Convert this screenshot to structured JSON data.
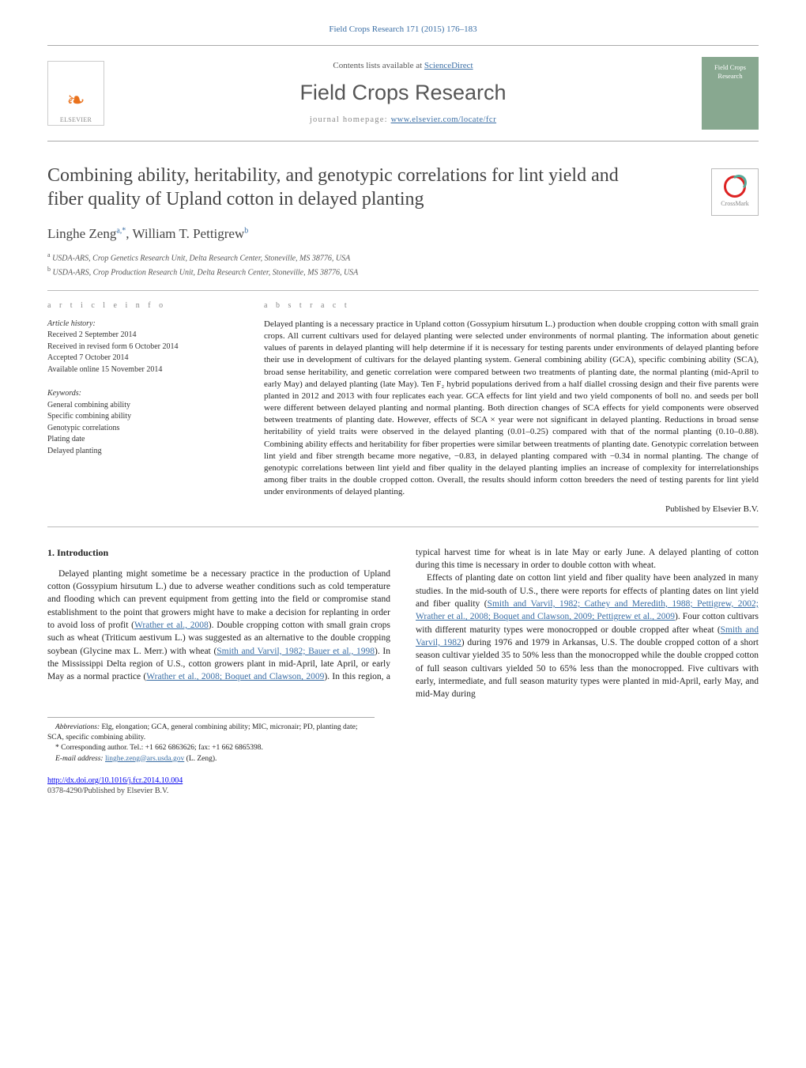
{
  "header": {
    "citation": "Field Crops Research 171 (2015) 176–183",
    "avail_text": "Contents lists available at ",
    "avail_link": "ScienceDirect",
    "journal": "Field Crops Research",
    "homepage_label": "journal homepage: ",
    "homepage_link": "www.elsevier.com/locate/fcr",
    "publisher": "ELSEVIER",
    "cover_text": "Field Crops Research"
  },
  "title": "Combining ability, heritability, and genotypic correlations for lint yield and fiber quality of Upland cotton in delayed planting",
  "crossmark": "CrossMark",
  "authors": {
    "line": "Linghe Zeng",
    "sup1": "a,",
    "star": "*",
    "sep": ", ",
    "name2": "William T. Pettigrew",
    "sup2": "b"
  },
  "affiliations": {
    "a": "USDA-ARS, Crop Genetics Research Unit, Delta Research Center, Stoneville, MS 38776, USA",
    "b": "USDA-ARS, Crop Production Research Unit, Delta Research Center, Stoneville, MS 38776, USA"
  },
  "article_info": {
    "label": "a r t i c l e   i n f o",
    "history_hdr": "Article history:",
    "h1": "Received 2 September 2014",
    "h2": "Received in revised form 6 October 2014",
    "h3": "Accepted 7 October 2014",
    "h4": "Available online 15 November 2014",
    "kw_hdr": "Keywords:",
    "k1": "General combining ability",
    "k2": "Specific combining ability",
    "k3": "Genotypic correlations",
    "k4": "Plating date",
    "k5": "Delayed planting"
  },
  "abstract": {
    "label": "a b s t r a c t",
    "text": "Delayed planting is a necessary practice in Upland cotton (Gossypium hirsutum L.) production when double cropping cotton with small grain crops. All current cultivars used for delayed planting were selected under environments of normal planting. The information about genetic values of parents in delayed planting will help determine if it is necessary for testing parents under environments of delayed planting before their use in development of cultivars for the delayed planting system. General combining ability (GCA), specific combining ability (SCA), broad sense heritability, and genetic correlation were compared between two treatments of planting date, the normal planting (mid-April to early May) and delayed planting (late May). Ten F₂ hybrid populations derived from a half diallel crossing design and their five parents were planted in 2012 and 2013 with four replicates each year. GCA effects for lint yield and two yield components of boll no. and seeds per boll were different between delayed planting and normal planting. Both direction changes of SCA effects for yield components were observed between treatments of planting date. However, effects of SCA × year were not significant in delayed planting. Reductions in broad sense heritability of yield traits were observed in the delayed planting (0.01–0.25) compared with that of the normal planting (0.10–0.88). Combining ability effects and heritability for fiber properties were similar between treatments of planting date. Genotypic correlation between lint yield and fiber strength became more negative, −0.83, in delayed planting compared with −0.34 in normal planting. The change of genotypic correlations between lint yield and fiber quality in the delayed planting implies an increase of complexity for interrelationships among fiber traits in the double cropped cotton. Overall, the results should inform cotton breeders the need of testing parents for lint yield under environments of delayed planting.",
    "publisher": "Published by Elsevier B.V."
  },
  "intro": {
    "heading": "1. Introduction",
    "p1a": "Delayed planting might sometime be a necessary practice in the production of Upland cotton (Gossypium hirsutum L.) due to adverse weather conditions such as cold temperature and flooding which can prevent equipment from getting into the field or compromise stand establishment to the point that growers might have to make a decision for replanting in order to avoid loss of profit (",
    "p1_link1": "Wrather et al., 2008",
    "p1b": "). Double cropping cotton with small grain crops such as wheat (Triticum aestivum L.) was suggested as an alternative to the double cropping soybean (Glycine max L. Merr.) with wheat (",
    "p1_link2": "Smith and Varvil, 1982; Bauer et al., 1998",
    "p1c": "). In the Mississippi Delta region",
    "p2a": "of U.S., cotton growers plant in mid-April, late April, or early May as a normal practice (",
    "p2_link1": "Wrather et al., 2008; Boquet and Clawson, 2009",
    "p2b": "). In this region, a typical harvest time for wheat is in late May or early June. A delayed planting of cotton during this time is necessary in order to double cotton with wheat.",
    "p3a": "Effects of planting date on cotton lint yield and fiber quality have been analyzed in many studies. In the mid-south of U.S., there were reports for effects of planting dates on lint yield and fiber quality (",
    "p3_link1": "Smith and Varvil, 1982; Cathey and Meredith, 1988; Pettigrew, 2002; Wrather et al., 2008; Boquet and Clawson, 2009; Pettigrew et al., 2009",
    "p3b": "). Four cotton cultivars with different maturity types were monocropped or double cropped after wheat (",
    "p3_link2": "Smith and Varvil, 1982",
    "p3c": ") during 1976 and 1979 in Arkansas, U.S. The double cropped cotton of a short season cultivar yielded 35 to 50% less than the monocropped while the double cropped cotton of full season cultivars yielded 50 to 65% less than the monocropped. Five cultivars with early, intermediate, and full season maturity types were planted in mid-April, early May, and mid-May during"
  },
  "footnotes": {
    "abbr_label": "Abbreviations:",
    "abbr_text": " Elg, elongation; GCA, general combining ability; MIC, micronair; PD, planting date; SCA, specific combining ability.",
    "corr": "* Corresponding author. Tel.: +1 662 6863626; fax: +1 662 6865398.",
    "email_label": "E-mail address: ",
    "email": "linghe.zeng@ars.usda.gov",
    "email_name": " (L. Zeng)."
  },
  "doi": {
    "link": "http://dx.doi.org/10.1016/j.fcr.2014.10.004",
    "issn": "0378-4290/Published by Elsevier B.V."
  }
}
